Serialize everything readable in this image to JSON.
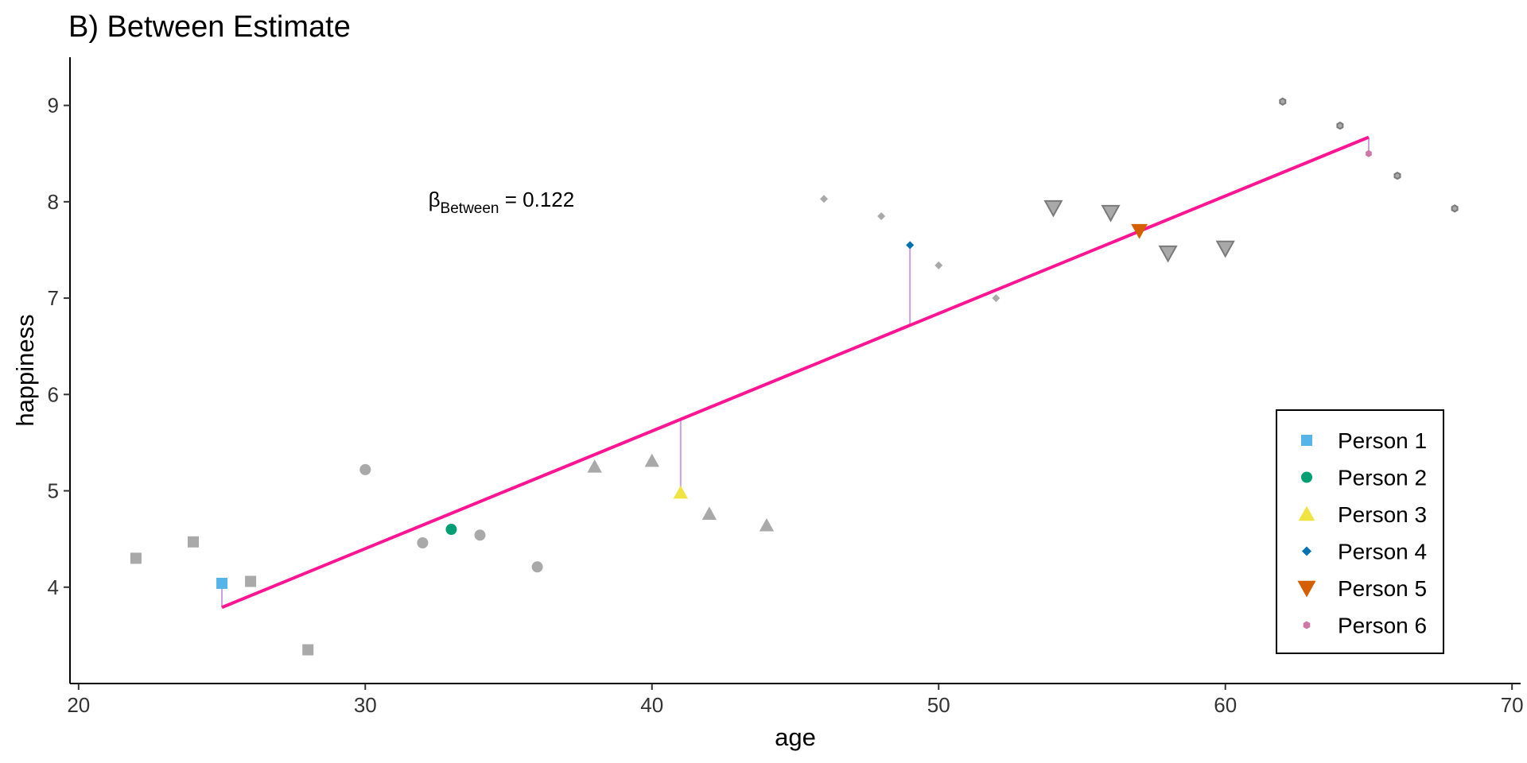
{
  "chart_data": {
    "type": "scatter",
    "title": "B) Between Estimate",
    "xlabel": "age",
    "ylabel": "happiness",
    "xlim": [
      19.7,
      70.3
    ],
    "ylim": [
      3.0,
      9.5
    ],
    "xticks": [
      20,
      30,
      40,
      50,
      60,
      70
    ],
    "yticks": [
      4,
      5,
      6,
      7,
      8,
      9
    ],
    "grid": false,
    "legend_position": "bottom-right",
    "annotation": {
      "symbol": "β",
      "subscript": "Between",
      "text": " = 0.122",
      "x": 32.2,
      "y": 7.95
    },
    "fit_line": {
      "color": "#FF1493",
      "x": [
        25,
        65
      ],
      "y": [
        3.79,
        8.67
      ]
    },
    "residual_lines": {
      "color": "#C9A0DC",
      "segments": [
        {
          "x": 25,
          "y0": 4.04,
          "y1": 3.79
        },
        {
          "x": 41,
          "y0": 4.98,
          "y1": 5.74
        },
        {
          "x": 49,
          "y0": 7.55,
          "y1": 6.72
        },
        {
          "x": 57,
          "y0": 7.7,
          "y1": 7.69
        },
        {
          "x": 65,
          "y0": 8.5,
          "y1": 8.67
        }
      ]
    },
    "series": [
      {
        "name": "Person 1",
        "shape": "square",
        "color": "#56B4E9",
        "mean": {
          "x": 25,
          "y": 4.04
        },
        "observations": [
          {
            "x": 22,
            "y": 4.3
          },
          {
            "x": 24,
            "y": 4.47
          },
          {
            "x": 26,
            "y": 4.06
          },
          {
            "x": 28,
            "y": 3.35
          }
        ]
      },
      {
        "name": "Person 2",
        "shape": "circle",
        "color": "#009E73",
        "mean": {
          "x": 33,
          "y": 4.6
        },
        "observations": [
          {
            "x": 30,
            "y": 5.22
          },
          {
            "x": 32,
            "y": 4.46
          },
          {
            "x": 34,
            "y": 4.54
          },
          {
            "x": 36,
            "y": 4.21
          }
        ]
      },
      {
        "name": "Person 3",
        "shape": "triangle-up",
        "color": "#F0E442",
        "mean": {
          "x": 41,
          "y": 4.98
        },
        "observations": [
          {
            "x": 38,
            "y": 5.25
          },
          {
            "x": 40,
            "y": 5.31
          },
          {
            "x": 42,
            "y": 4.76
          },
          {
            "x": 44,
            "y": 4.64
          }
        ]
      },
      {
        "name": "Person 4",
        "shape": "diamond",
        "color": "#0072B2",
        "mean": {
          "x": 49,
          "y": 7.55
        },
        "observations": [
          {
            "x": 46,
            "y": 8.03
          },
          {
            "x": 48,
            "y": 7.85
          },
          {
            "x": 50,
            "y": 7.34
          },
          {
            "x": 52,
            "y": 7.0
          }
        ]
      },
      {
        "name": "Person 5",
        "shape": "triangle-down",
        "color": "#D55E00",
        "mean": {
          "x": 57,
          "y": 7.7
        },
        "observations": [
          {
            "x": 54,
            "y": 7.94
          },
          {
            "x": 56,
            "y": 7.89
          },
          {
            "x": 58,
            "y": 7.47
          },
          {
            "x": 60,
            "y": 7.52
          }
        ]
      },
      {
        "name": "Person 6",
        "shape": "hexagon",
        "color": "#CC79A7",
        "mean": {
          "x": 65,
          "y": 8.5
        },
        "observations": [
          {
            "x": 62,
            "y": 9.04
          },
          {
            "x": 64,
            "y": 8.79
          },
          {
            "x": 66,
            "y": 8.27
          },
          {
            "x": 68,
            "y": 7.93
          }
        ]
      }
    ],
    "observation_color": "#A9A9A9"
  }
}
